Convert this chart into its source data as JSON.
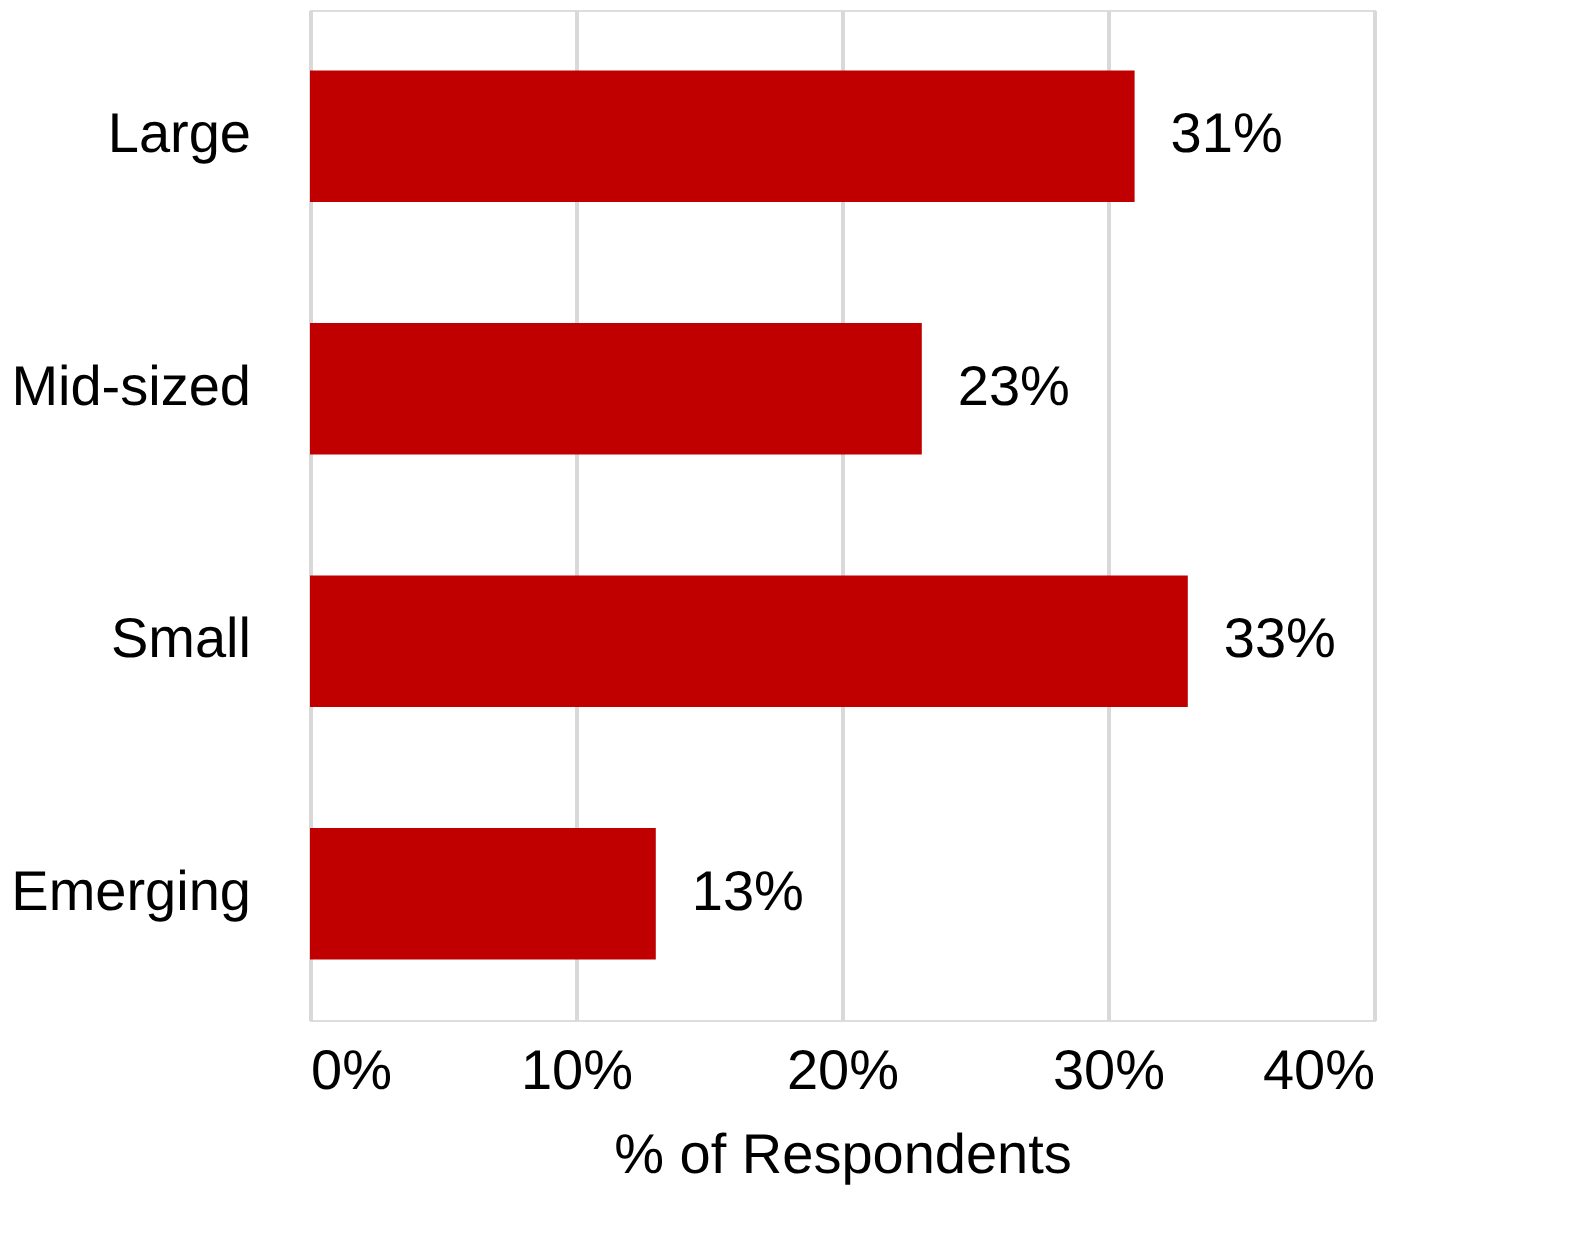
{
  "chart_data": {
    "type": "bar",
    "orientation": "horizontal",
    "categories": [
      "Large",
      "Mid-sized",
      "Small",
      "Emerging"
    ],
    "values": [
      31,
      23,
      33,
      13
    ],
    "value_labels": [
      "31%",
      "23%",
      "33%",
      "13%"
    ],
    "color": "#c00000",
    "xlabel": "% of Respondents",
    "xlim": [
      0,
      40
    ],
    "xticks": [
      {
        "value": 0,
        "label": "0%"
      },
      {
        "value": 10,
        "label": "10%"
      },
      {
        "value": 20,
        "label": "20%"
      },
      {
        "value": 30,
        "label": "30%"
      },
      {
        "value": 40,
        "label": "40%"
      }
    ],
    "grid": "x"
  }
}
